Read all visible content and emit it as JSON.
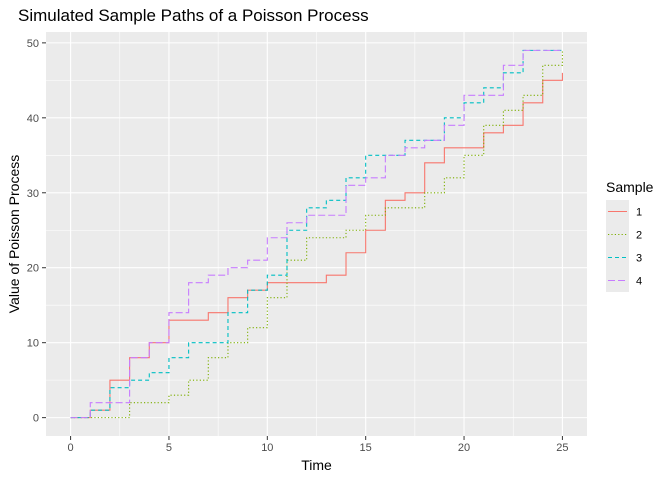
{
  "chart_data": {
    "type": "line",
    "subtype": "step",
    "title": "Simulated Sample Paths of a Poisson Process",
    "xlabel": "Time",
    "ylabel": "Value of Poisson Process",
    "xlim": [
      -1.25,
      26.25
    ],
    "ylim": [
      -2.45,
      51.45
    ],
    "x_ticks": [
      0,
      5,
      10,
      15,
      20,
      25
    ],
    "y_ticks": [
      0,
      10,
      20,
      30,
      40,
      50
    ],
    "x_tick_labels": [
      "0",
      "5",
      "10",
      "15",
      "20",
      "25"
    ],
    "y_tick_labels": [
      "0",
      "10",
      "20",
      "30",
      "40",
      "50"
    ],
    "grid": true,
    "legend": {
      "title": "Sample",
      "position": "right"
    },
    "x": [
      0,
      1,
      2,
      3,
      4,
      5,
      6,
      7,
      8,
      9,
      10,
      11,
      12,
      13,
      14,
      15,
      16,
      17,
      18,
      19,
      20,
      21,
      22,
      23,
      24,
      25
    ],
    "series": [
      {
        "name": "1",
        "color": "#F8766D",
        "dash": "solid",
        "values": [
          0,
          1,
          5,
          8,
          10,
          13,
          13,
          14,
          16,
          17,
          18,
          18,
          18,
          19,
          22,
          25,
          29,
          30,
          34,
          36,
          36,
          38,
          39,
          42,
          45,
          46
        ]
      },
      {
        "name": "2",
        "color": "#7CAE00",
        "dash": "dotted",
        "values": [
          0,
          0,
          0,
          2,
          2,
          3,
          5,
          8,
          10,
          12,
          16,
          21,
          24,
          24,
          25,
          27,
          28,
          28,
          30,
          32,
          35,
          39,
          41,
          43,
          47,
          49
        ]
      },
      {
        "name": "3",
        "color": "#00BFC4",
        "dash": "dashed",
        "values": [
          0,
          1,
          4,
          5,
          6,
          8,
          10,
          10,
          14,
          17,
          19,
          25,
          28,
          29,
          32,
          35,
          35,
          37,
          37,
          40,
          42,
          44,
          46,
          49,
          49,
          49
        ]
      },
      {
        "name": "4",
        "color": "#C77CFF",
        "dash": "longdash",
        "values": [
          0,
          2,
          2,
          8,
          10,
          14,
          18,
          19,
          20,
          21,
          24,
          26,
          27,
          27,
          31,
          32,
          35,
          36,
          37,
          39,
          43,
          43,
          47,
          49,
          49,
          49
        ]
      }
    ]
  }
}
